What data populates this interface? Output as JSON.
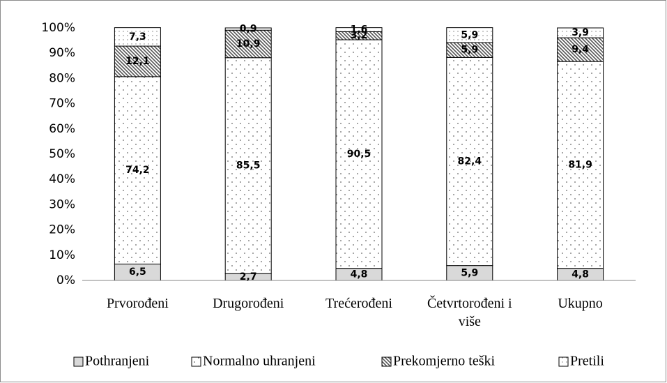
{
  "chart_data": {
    "type": "stacked_bar",
    "categories": [
      "Prvorođeni",
      "Drugorođeni",
      "Trećerođeni",
      "Četvrtorođeni i više",
      "Ukupno"
    ],
    "series": [
      {
        "name": "Pothranjeni",
        "color": "#d9d9d9",
        "values": [
          6.5,
          2.7,
          4.8,
          5.9,
          4.8
        ],
        "value_labels": [
          "6,5",
          "2,7",
          "4,8",
          "5,9",
          "4,8"
        ]
      },
      {
        "name": "Normalno uhranjeni",
        "color": "#ffffff",
        "values": [
          74.2,
          85.5,
          90.5,
          82.4,
          81.9
        ],
        "value_labels": [
          "74,2",
          "85,5",
          "90,5",
          "82,4",
          "81,9"
        ]
      },
      {
        "name": "Prekomjerno teški",
        "color": "#a6a6a6",
        "values": [
          12.1,
          10.9,
          3.2,
          5.9,
          9.4
        ],
        "value_labels": [
          "12,1",
          "10,9",
          "3,2",
          "5,9",
          "9,4"
        ]
      },
      {
        "name": "Pretili",
        "color": "#ffffff",
        "values": [
          7.3,
          0.9,
          1.6,
          5.9,
          3.9
        ],
        "value_labels": [
          "7,3",
          "0,9",
          "1,6",
          "5,9",
          "3,9"
        ]
      }
    ],
    "ylim": [
      0,
      100
    ],
    "yticks": [
      {
        "value": 0,
        "label": "0%"
      },
      {
        "value": 10,
        "label": "10%"
      },
      {
        "value": 20,
        "label": "20%"
      },
      {
        "value": 30,
        "label": "30%"
      },
      {
        "value": 40,
        "label": "40%"
      },
      {
        "value": 50,
        "label": "50%"
      },
      {
        "value": 60,
        "label": "60%"
      },
      {
        "value": 70,
        "label": "70%"
      },
      {
        "value": 80,
        "label": "80%"
      },
      {
        "value": 90,
        "label": "90%"
      },
      {
        "value": 100,
        "label": "100%"
      }
    ],
    "grid": false,
    "legend": "bottom"
  }
}
